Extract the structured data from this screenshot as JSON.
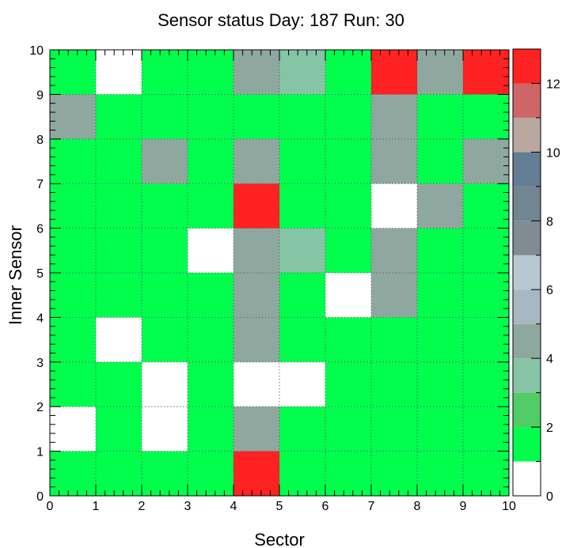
{
  "chart_data": {
    "type": "heatmap",
    "title": "Sensor status Day: 187 Run: 30",
    "xlabel": "Sector",
    "ylabel": "Inner Sensor",
    "xlim": [
      0,
      10
    ],
    "ylim": [
      0,
      10
    ],
    "x_ticks": [
      "0",
      "1",
      "2",
      "3",
      "4",
      "5",
      "6",
      "7",
      "8",
      "9",
      "10"
    ],
    "y_ticks": [
      "0",
      "1",
      "2",
      "3",
      "4",
      "5",
      "6",
      "7",
      "8",
      "9",
      "10"
    ],
    "grid": true,
    "zlim": [
      0,
      13
    ],
    "z_ticks": [
      "0",
      "2",
      "4",
      "6",
      "8",
      "10",
      "12"
    ],
    "palette": [
      "#ffffff",
      "#00ff4d",
      "#52cc66",
      "#86c4a6",
      "#8fa89f",
      "#a8b8c2",
      "#b8c8d0",
      "#7f8c94",
      "#718690",
      "#627d94",
      "#b8a8a0",
      "#cf6666",
      "#ff2222"
    ],
    "rows": [
      [
        1,
        1,
        1,
        1,
        13,
        1,
        1,
        1,
        1,
        1
      ],
      [
        0,
        1,
        0,
        1,
        4,
        1,
        1,
        1,
        1,
        1
      ],
      [
        1,
        1,
        0,
        1,
        0,
        0,
        1,
        1,
        1,
        1
      ],
      [
        1,
        0,
        1,
        1,
        4,
        1,
        1,
        1,
        1,
        1
      ],
      [
        1,
        1,
        1,
        1,
        4,
        1,
        0,
        4,
        1,
        1
      ],
      [
        1,
        1,
        1,
        0,
        4,
        3,
        1,
        4,
        1,
        1
      ],
      [
        1,
        1,
        1,
        1,
        13,
        1,
        1,
        0,
        4,
        1
      ],
      [
        1,
        1,
        4,
        1,
        4,
        1,
        1,
        4,
        1,
        4
      ],
      [
        4,
        1,
        1,
        1,
        1,
        1,
        1,
        4,
        1,
        1
      ],
      [
        1,
        0,
        1,
        1,
        4,
        3,
        1,
        13,
        4,
        13
      ]
    ]
  }
}
